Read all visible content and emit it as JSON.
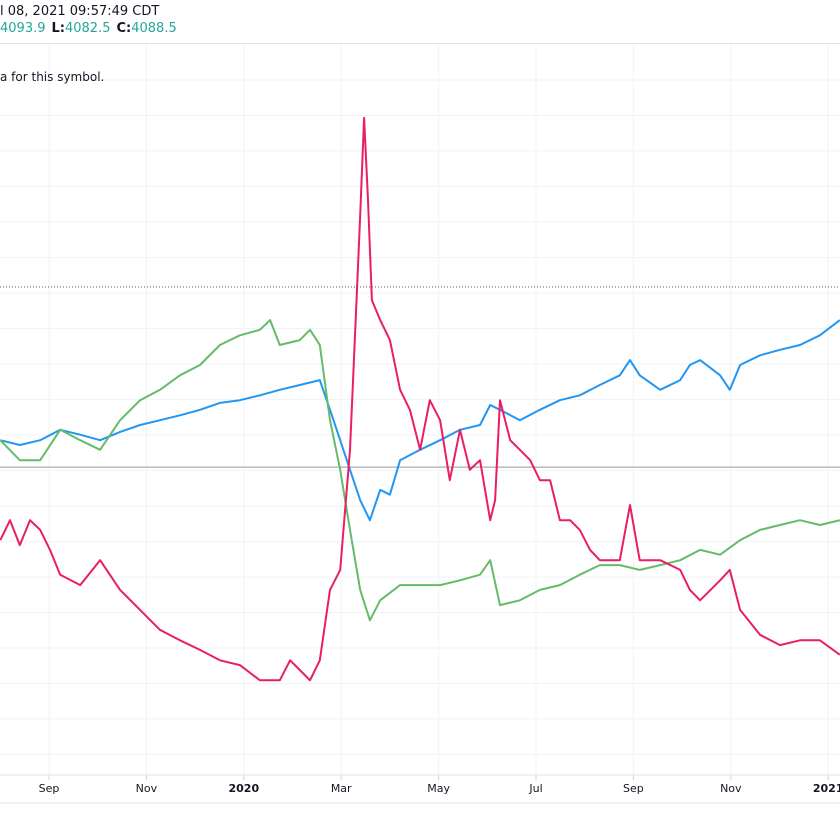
{
  "header": {
    "datetime": "l 08, 2021 09:57:49 CDT",
    "ohlc": [
      {
        "key": "",
        "value": "4093.9"
      },
      {
        "key": "L:",
        "value": "4082.5"
      },
      {
        "key": "C:",
        "value": "4088.5"
      }
    ],
    "note": "a for this symbol."
  },
  "colors": {
    "blue": "#2196f3",
    "green": "#66bb6a",
    "red": "#e91e63",
    "value_text": "#26a69a"
  },
  "chart_data": {
    "type": "line",
    "title": "",
    "xlabel": "",
    "ylabel": "",
    "x_unit": "months since Sep 1, 2019",
    "xlim": [
      -1.0,
      16.25
    ],
    "ylim": [
      0,
      100
    ],
    "grid": true,
    "x_ticks": [
      {
        "label": "Sep",
        "x": 0,
        "bold": false
      },
      {
        "label": "Nov",
        "x": 2,
        "bold": false
      },
      {
        "label": "2020",
        "x": 4,
        "bold": true
      },
      {
        "label": "Mar",
        "x": 6,
        "bold": false
      },
      {
        "label": "May",
        "x": 8,
        "bold": false
      },
      {
        "label": "Jul",
        "x": 10,
        "bold": false
      },
      {
        "label": "Sep",
        "x": 12,
        "bold": false
      },
      {
        "label": "Nov",
        "x": 14,
        "bold": false
      },
      {
        "label": "2021",
        "x": 16,
        "bold": true
      }
    ],
    "reference_lines": [
      {
        "name": "dotted-level",
        "y": 70.0,
        "style": "dotted"
      },
      {
        "name": "solid-level",
        "y": 43.9,
        "style": "solid"
      }
    ],
    "series": [
      {
        "name": "blue",
        "color": "#2196f3",
        "points": [
          [
            -1.0,
            47.8
          ],
          [
            -0.6,
            47.1
          ],
          [
            -0.18,
            47.8
          ],
          [
            0.23,
            49.3
          ],
          [
            0.64,
            48.6
          ],
          [
            1.05,
            47.8
          ],
          [
            1.46,
            49.0
          ],
          [
            1.87,
            50.0
          ],
          [
            2.28,
            50.7
          ],
          [
            2.69,
            51.4
          ],
          [
            3.1,
            52.2
          ],
          [
            3.51,
            53.2
          ],
          [
            3.92,
            53.6
          ],
          [
            4.33,
            54.3
          ],
          [
            4.74,
            55.1
          ],
          [
            5.15,
            55.8
          ],
          [
            5.56,
            56.5
          ],
          [
            5.77,
            52.2
          ],
          [
            5.98,
            47.8
          ],
          [
            6.18,
            43.5
          ],
          [
            6.39,
            39.1
          ],
          [
            6.59,
            36.2
          ],
          [
            6.8,
            40.6
          ],
          [
            7.0,
            39.9
          ],
          [
            7.21,
            44.9
          ],
          [
            7.62,
            46.4
          ],
          [
            8.03,
            47.8
          ],
          [
            8.44,
            49.3
          ],
          [
            8.85,
            50.0
          ],
          [
            9.06,
            52.9
          ],
          [
            9.26,
            52.2
          ],
          [
            9.67,
            50.7
          ],
          [
            10.08,
            52.2
          ],
          [
            10.49,
            53.6
          ],
          [
            10.9,
            54.3
          ],
          [
            11.31,
            55.8
          ],
          [
            11.72,
            57.2
          ],
          [
            11.93,
            59.4
          ],
          [
            12.13,
            57.2
          ],
          [
            12.55,
            55.1
          ],
          [
            12.96,
            56.5
          ],
          [
            13.16,
            58.7
          ],
          [
            13.37,
            59.4
          ],
          [
            13.78,
            57.2
          ],
          [
            13.98,
            55.1
          ],
          [
            14.19,
            58.7
          ],
          [
            14.6,
            60.1
          ],
          [
            15.01,
            60.9
          ],
          [
            15.42,
            61.6
          ],
          [
            15.83,
            63.0
          ],
          [
            16.24,
            65.2
          ]
        ]
      },
      {
        "name": "green",
        "color": "#66bb6a",
        "points": [
          [
            -1.0,
            47.8
          ],
          [
            -0.6,
            44.9
          ],
          [
            -0.18,
            44.9
          ],
          [
            0.23,
            49.3
          ],
          [
            0.64,
            47.8
          ],
          [
            1.05,
            46.4
          ],
          [
            1.46,
            50.7
          ],
          [
            1.87,
            53.6
          ],
          [
            2.28,
            55.1
          ],
          [
            2.69,
            57.2
          ],
          [
            3.1,
            58.7
          ],
          [
            3.51,
            61.6
          ],
          [
            3.92,
            63.0
          ],
          [
            4.33,
            63.8
          ],
          [
            4.54,
            65.2
          ],
          [
            4.74,
            61.6
          ],
          [
            5.15,
            62.3
          ],
          [
            5.36,
            63.8
          ],
          [
            5.56,
            61.6
          ],
          [
            5.77,
            50.7
          ],
          [
            5.98,
            43.5
          ],
          [
            6.18,
            34.8
          ],
          [
            6.39,
            26.1
          ],
          [
            6.59,
            21.7
          ],
          [
            6.8,
            24.6
          ],
          [
            7.21,
            26.8
          ],
          [
            7.62,
            26.8
          ],
          [
            8.03,
            26.8
          ],
          [
            8.44,
            27.5
          ],
          [
            8.85,
            28.3
          ],
          [
            9.06,
            30.4
          ],
          [
            9.26,
            23.9
          ],
          [
            9.67,
            24.6
          ],
          [
            10.08,
            26.1
          ],
          [
            10.49,
            26.8
          ],
          [
            10.9,
            28.3
          ],
          [
            11.31,
            29.7
          ],
          [
            11.72,
            29.7
          ],
          [
            12.13,
            29.0
          ],
          [
            12.55,
            29.7
          ],
          [
            12.96,
            30.4
          ],
          [
            13.37,
            31.9
          ],
          [
            13.78,
            31.2
          ],
          [
            14.19,
            33.3
          ],
          [
            14.6,
            34.8
          ],
          [
            15.01,
            35.5
          ],
          [
            15.42,
            36.2
          ],
          [
            15.83,
            35.5
          ],
          [
            16.24,
            36.2
          ]
        ]
      },
      {
        "name": "red",
        "color": "#e91e63",
        "points": [
          [
            -1.0,
            33.3
          ],
          [
            -0.8,
            36.2
          ],
          [
            -0.6,
            32.6
          ],
          [
            -0.39,
            36.2
          ],
          [
            -0.18,
            34.8
          ],
          [
            0.02,
            31.9
          ],
          [
            0.23,
            28.3
          ],
          [
            0.64,
            26.8
          ],
          [
            1.05,
            30.4
          ],
          [
            1.46,
            26.1
          ],
          [
            1.87,
            23.2
          ],
          [
            2.28,
            20.3
          ],
          [
            2.69,
            18.8
          ],
          [
            3.1,
            17.4
          ],
          [
            3.51,
            15.9
          ],
          [
            3.92,
            15.2
          ],
          [
            4.33,
            13.0
          ],
          [
            4.74,
            13.0
          ],
          [
            4.95,
            15.9
          ],
          [
            5.15,
            14.5
          ],
          [
            5.36,
            13.0
          ],
          [
            5.56,
            15.9
          ],
          [
            5.77,
            26.1
          ],
          [
            5.98,
            29.0
          ],
          [
            6.18,
            46.4
          ],
          [
            6.28,
            62.3
          ],
          [
            6.39,
            80.4
          ],
          [
            6.47,
            94.5
          ],
          [
            6.55,
            82.6
          ],
          [
            6.63,
            68.1
          ],
          [
            6.8,
            65.2
          ],
          [
            7.0,
            62.3
          ],
          [
            7.21,
            55.1
          ],
          [
            7.41,
            52.2
          ],
          [
            7.62,
            46.4
          ],
          [
            7.82,
            53.6
          ],
          [
            8.03,
            50.7
          ],
          [
            8.23,
            42.0
          ],
          [
            8.44,
            49.3
          ],
          [
            8.64,
            43.5
          ],
          [
            8.85,
            44.9
          ],
          [
            9.06,
            36.2
          ],
          [
            9.16,
            39.1
          ],
          [
            9.26,
            53.6
          ],
          [
            9.47,
            47.8
          ],
          [
            9.67,
            46.4
          ],
          [
            9.88,
            44.9
          ],
          [
            10.08,
            42.0
          ],
          [
            10.29,
            42.0
          ],
          [
            10.49,
            36.2
          ],
          [
            10.7,
            36.2
          ],
          [
            10.9,
            34.8
          ],
          [
            11.11,
            31.9
          ],
          [
            11.31,
            30.4
          ],
          [
            11.72,
            30.4
          ],
          [
            11.93,
            38.4
          ],
          [
            12.13,
            30.4
          ],
          [
            12.55,
            30.4
          ],
          [
            12.96,
            29.0
          ],
          [
            13.16,
            26.1
          ],
          [
            13.37,
            24.6
          ],
          [
            13.78,
            27.5
          ],
          [
            13.98,
            29.0
          ],
          [
            14.19,
            23.2
          ],
          [
            14.6,
            19.6
          ],
          [
            15.01,
            18.1
          ],
          [
            15.42,
            18.8
          ],
          [
            15.83,
            18.8
          ],
          [
            16.24,
            16.7
          ]
        ]
      }
    ]
  }
}
